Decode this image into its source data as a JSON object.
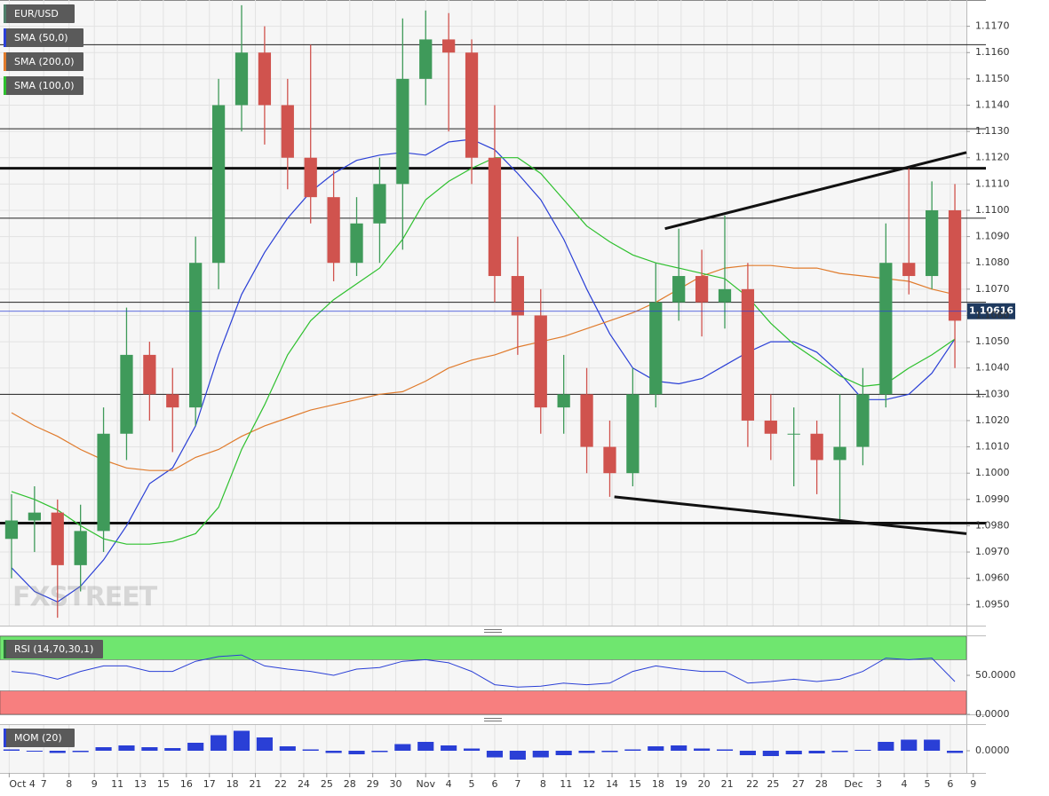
{
  "chart_data": [
    {
      "type": "candlestick",
      "name": "EUR/USD",
      "name_color": "#4f7f6a",
      "up_color": "#3f9a5a",
      "down_color": "#d0534e",
      "xlim": [
        0,
        42
      ],
      "x": [
        0.5,
        1.5,
        2.5,
        3.5,
        4.5,
        5.5,
        6.5,
        7.5,
        8.5,
        9.5,
        10.5,
        11.5,
        12.5,
        13.5,
        14.5,
        15.5,
        16.5,
        17.5,
        18.5,
        19.5,
        20.5,
        21.5,
        22.5,
        23.5,
        24.5,
        25.5,
        26.5,
        27.5,
        28.5,
        29.5,
        30.5,
        31.5,
        32.5,
        33.5,
        34.5,
        35.5,
        36.5,
        37.5,
        38.5,
        39.5,
        40.5,
        41.5
      ],
      "open": [
        1.0975,
        1.0982,
        1.0985,
        1.0965,
        1.0978,
        1.1015,
        1.1045,
        1.103,
        1.1025,
        1.108,
        1.114,
        1.116,
        1.114,
        1.112,
        1.1105,
        1.108,
        1.1095,
        1.111,
        1.115,
        1.1165,
        1.116,
        1.112,
        1.1075,
        1.106,
        1.1025,
        1.103,
        1.101,
        1.1,
        1.103,
        1.1065,
        1.1075,
        1.1065,
        1.107,
        1.102,
        1.1015,
        1.1015,
        1.1005,
        1.101,
        1.103,
        1.108,
        1.1075,
        1.11
      ],
      "high": [
        1.0992,
        1.0995,
        1.099,
        1.0988,
        1.1025,
        1.1063,
        1.105,
        1.104,
        1.109,
        1.115,
        1.1178,
        1.117,
        1.115,
        1.1163,
        1.1115,
        1.1105,
        1.112,
        1.1173,
        1.1176,
        1.1175,
        1.1165,
        1.114,
        1.109,
        1.107,
        1.1045,
        1.104,
        1.102,
        1.104,
        1.108,
        1.1093,
        1.1085,
        1.1098,
        1.108,
        1.103,
        1.1025,
        1.102,
        1.103,
        1.104,
        1.1095,
        1.1116,
        1.1111,
        1.111
      ],
      "low": [
        1.096,
        1.097,
        1.0945,
        1.0955,
        1.097,
        1.1005,
        1.102,
        1.1008,
        1.1018,
        1.107,
        1.113,
        1.1125,
        1.1108,
        1.1095,
        1.1073,
        1.1075,
        1.108,
        1.1085,
        1.114,
        1.113,
        1.111,
        1.1065,
        1.1045,
        1.1015,
        1.1015,
        1.1,
        1.0991,
        1.0995,
        1.1025,
        1.1058,
        1.1052,
        1.1055,
        1.101,
        1.1005,
        1.0995,
        1.0992,
        1.0982,
        1.1003,
        1.1025,
        1.1068,
        1.107,
        1.104
      ],
      "close": [
        1.0982,
        1.0985,
        1.0965,
        1.0978,
        1.1015,
        1.1045,
        1.103,
        1.1025,
        1.108,
        1.114,
        1.116,
        1.114,
        1.112,
        1.1105,
        1.108,
        1.1095,
        1.111,
        1.115,
        1.1165,
        1.116,
        1.112,
        1.1075,
        1.106,
        1.1025,
        1.103,
        1.101,
        1.1,
        1.103,
        1.1065,
        1.1075,
        1.1065,
        1.107,
        1.102,
        1.1015,
        1.1015,
        1.1005,
        1.101,
        1.103,
        1.108,
        1.1075,
        1.11,
        1.1058
      ],
      "ylim": [
        1.0942,
        1.118
      ],
      "yticks": [
        {
          "value": 1.095,
          "label": "1.0950"
        },
        {
          "value": 1.096,
          "label": "1.0960"
        },
        {
          "value": 1.097,
          "label": "1.0970"
        },
        {
          "value": 1.098,
          "label": "1.0980"
        },
        {
          "value": 1.099,
          "label": "1.0990"
        },
        {
          "value": 1.1,
          "label": "1.1000"
        },
        {
          "value": 1.101,
          "label": "1.1010"
        },
        {
          "value": 1.102,
          "label": "1.1020"
        },
        {
          "value": 1.103,
          "label": "1.1030"
        },
        {
          "value": 1.104,
          "label": "1.1040"
        },
        {
          "value": 1.105,
          "label": "1.1050"
        },
        {
          "value": 1.106,
          "label": "1.1060"
        },
        {
          "value": 1.107,
          "label": "1.1070"
        },
        {
          "value": 1.108,
          "label": "1.1080"
        },
        {
          "value": 1.109,
          "label": "1.1090"
        },
        {
          "value": 1.11,
          "label": "1.1100"
        },
        {
          "value": 1.111,
          "label": "1.1110"
        },
        {
          "value": 1.112,
          "label": "1.1120"
        },
        {
          "value": 1.113,
          "label": "1.1130"
        },
        {
          "value": 1.114,
          "label": "1.1140"
        },
        {
          "value": 1.115,
          "label": "1.1150"
        },
        {
          "value": 1.116,
          "label": "1.1160"
        },
        {
          "value": 1.117,
          "label": "1.1170"
        }
      ],
      "grid": true,
      "series": [
        {
          "name": "SMA (50,0)",
          "color": "#2a3fd6",
          "values": [
            1.0964,
            1.0955,
            1.0951,
            1.0957,
            1.0967,
            1.098,
            1.0996,
            1.1002,
            1.1018,
            1.1045,
            1.1068,
            1.1084,
            1.1097,
            1.1107,
            1.1114,
            1.1119,
            1.1121,
            1.1122,
            1.1121,
            1.1126,
            1.1127,
            1.1123,
            1.1114,
            1.1104,
            1.1089,
            1.107,
            1.1053,
            1.104,
            1.1035,
            1.1034,
            1.1036,
            1.1041,
            1.1046,
            1.105,
            1.105,
            1.1046,
            1.1038,
            1.1028,
            1.1028,
            1.103,
            1.1038,
            1.1051
          ]
        },
        {
          "name": "SMA (200,0)",
          "color": "#e07b2c",
          "values": [
            1.1023,
            1.1018,
            1.1014,
            1.1009,
            1.1005,
            1.1002,
            1.1001,
            1.1001,
            1.1006,
            1.1009,
            1.1014,
            1.1018,
            1.1021,
            1.1024,
            1.1026,
            1.1028,
            1.103,
            1.1031,
            1.1035,
            1.104,
            1.1043,
            1.1045,
            1.1048,
            1.105,
            1.1052,
            1.1055,
            1.1058,
            1.1061,
            1.1065,
            1.107,
            1.1075,
            1.1078,
            1.1079,
            1.1079,
            1.1078,
            1.1078,
            1.1076,
            1.1075,
            1.1074,
            1.1073,
            1.107,
            1.1068
          ]
        },
        {
          "name": "SMA (100,0)",
          "color": "#2ec02e",
          "values": [
            1.0993,
            1.099,
            1.0986,
            1.098,
            1.0975,
            1.0973,
            1.0973,
            1.0974,
            1.0977,
            1.0987,
            1.1009,
            1.1026,
            1.1045,
            1.1058,
            1.1066,
            1.1072,
            1.1078,
            1.1089,
            1.1104,
            1.1111,
            1.1116,
            1.112,
            1.112,
            1.1114,
            1.1104,
            1.1094,
            1.1088,
            1.1083,
            1.108,
            1.1078,
            1.1076,
            1.1074,
            1.1067,
            1.1057,
            1.1049,
            1.1043,
            1.1037,
            1.1033,
            1.1034,
            1.104,
            1.1045,
            1.1051
          ]
        }
      ],
      "levels": [
        1.1163,
        1.1131,
        1.1097,
        1.1065,
        1.103
      ],
      "key_levels": [
        1.1116,
        1.0981
      ],
      "trendlines": [
        {
          "x": [
            28.9,
            42
          ],
          "y": [
            1.1093,
            1.1122
          ]
        },
        {
          "x": [
            26.7,
            42
          ],
          "y": [
            1.0991,
            1.0977
          ]
        }
      ],
      "last_price": 1.10616,
      "last_color": "#1f3a5f",
      "watermark": "FXSTREET"
    },
    {
      "type": "line",
      "name": "RSI (14,70,30,1)",
      "color": "#2a3fd6",
      "xlim": [
        0,
        42
      ],
      "x": [
        0.5,
        1.5,
        2.5,
        3.5,
        4.5,
        5.5,
        6.5,
        7.5,
        8.5,
        9.5,
        10.5,
        11.5,
        12.5,
        13.5,
        14.5,
        15.5,
        16.5,
        17.5,
        18.5,
        19.5,
        20.5,
        21.5,
        22.5,
        23.5,
        24.5,
        25.5,
        26.5,
        27.5,
        28.5,
        29.5,
        30.5,
        31.5,
        32.5,
        33.5,
        34.5,
        35.5,
        36.5,
        37.5,
        38.5,
        39.5,
        40.5,
        41.5
      ],
      "values": [
        55,
        52,
        45,
        55,
        62,
        62,
        55,
        55,
        68,
        74,
        76,
        62,
        58,
        55,
        50,
        58,
        60,
        68,
        70,
        66,
        55,
        38,
        35,
        36,
        40,
        38,
        40,
        55,
        62,
        58,
        55,
        55,
        40,
        42,
        45,
        42,
        45,
        55,
        72,
        70,
        72,
        42
      ],
      "ylim": [
        0,
        100
      ],
      "yticks": [
        {
          "value": 0,
          "label": "0.0000"
        },
        {
          "value": 50,
          "label": "50.0000"
        }
      ],
      "bands": [
        {
          "from": 70,
          "to": 100,
          "color": "#6fe66f"
        },
        {
          "from": 0,
          "to": 30,
          "color": "#f77f7f"
        }
      ]
    },
    {
      "type": "bar",
      "name": "MOM (20)",
      "color": "#2a3fd6",
      "xlim": [
        0,
        42
      ],
      "x": [
        0.5,
        1.5,
        2.5,
        3.5,
        4.5,
        5.5,
        6.5,
        7.5,
        8.5,
        9.5,
        10.5,
        11.5,
        12.5,
        13.5,
        14.5,
        15.5,
        16.5,
        17.5,
        18.5,
        19.5,
        20.5,
        21.5,
        22.5,
        23.5,
        24.5,
        25.5,
        26.5,
        27.5,
        28.5,
        29.5,
        30.5,
        31.5,
        32.5,
        33.5,
        34.5,
        35.5,
        36.5,
        37.5,
        38.5,
        39.5,
        40.5,
        41.5
      ],
      "values": [
        0.0003,
        -0.0002,
        -0.0005,
        -0.0003,
        0.0008,
        0.0012,
        0.0008,
        0.0006,
        0.0018,
        0.0035,
        0.0045,
        0.003,
        0.001,
        0.0003,
        -0.0005,
        -0.0008,
        -0.0003,
        0.0015,
        0.002,
        0.0012,
        0.0005,
        -0.0015,
        -0.002,
        -0.0015,
        -0.001,
        -0.0005,
        -0.0003,
        0.0003,
        0.001,
        0.0012,
        0.0005,
        0.0003,
        -0.001,
        -0.0012,
        -0.0008,
        -0.0006,
        -0.0003,
        0.0002,
        0.002,
        0.0025,
        0.0025,
        -0.0005
      ],
      "ylim": [
        -0.005,
        0.0058
      ],
      "yticks": [
        {
          "value": 0,
          "label": "0.0000"
        }
      ],
      "xticks": [
        {
          "value": 0.4,
          "label": "Oct 4"
        },
        {
          "value": 1.9,
          "label": "7"
        },
        {
          "value": 3.0,
          "label": "8"
        },
        {
          "value": 4.1,
          "label": "9"
        },
        {
          "value": 5.1,
          "label": "11"
        },
        {
          "value": 6.1,
          "label": "13"
        },
        {
          "value": 7.1,
          "label": "15"
        },
        {
          "value": 8.1,
          "label": "16"
        },
        {
          "value": 9.1,
          "label": "17"
        },
        {
          "value": 10.1,
          "label": "18"
        },
        {
          "value": 11.1,
          "label": "21"
        },
        {
          "value": 12.2,
          "label": "22"
        },
        {
          "value": 13.2,
          "label": "24"
        },
        {
          "value": 14.2,
          "label": "25"
        },
        {
          "value": 15.2,
          "label": "28"
        },
        {
          "value": 16.2,
          "label": "29"
        },
        {
          "value": 17.2,
          "label": "30"
        },
        {
          "value": 18.5,
          "label": "Nov"
        },
        {
          "value": 19.5,
          "label": "4"
        },
        {
          "value": 20.5,
          "label": "5"
        },
        {
          "value": 21.5,
          "label": "6"
        },
        {
          "value": 22.5,
          "label": "7"
        },
        {
          "value": 23.6,
          "label": "8"
        },
        {
          "value": 24.6,
          "label": "11"
        },
        {
          "value": 25.6,
          "label": "12"
        },
        {
          "value": 26.6,
          "label": "14"
        },
        {
          "value": 27.6,
          "label": "15"
        },
        {
          "value": 28.6,
          "label": "18"
        },
        {
          "value": 29.6,
          "label": "19"
        },
        {
          "value": 30.6,
          "label": "20"
        },
        {
          "value": 31.6,
          "label": "21"
        },
        {
          "value": 32.7,
          "label": "22"
        },
        {
          "value": 33.6,
          "label": "25"
        },
        {
          "value": 34.7,
          "label": "27"
        },
        {
          "value": 35.7,
          "label": "28"
        },
        {
          "value": 37.1,
          "label": "Dec"
        },
        {
          "value": 38.2,
          "label": "3"
        },
        {
          "value": 39.3,
          "label": "4"
        },
        {
          "value": 40.3,
          "label": "5"
        },
        {
          "value": 41.3,
          "label": "6"
        },
        {
          "value": 42.3,
          "label": "9"
        }
      ]
    }
  ]
}
